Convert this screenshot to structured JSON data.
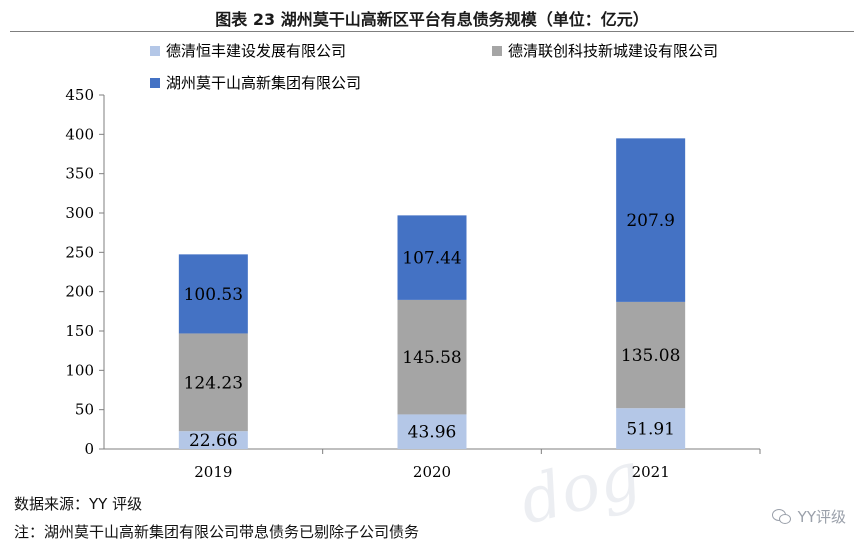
{
  "title": "图表 23 湖州莫干山高新区平台有息债务规模（单位：亿元）",
  "source": "数据来源：YY 评级",
  "note": "注：湖州莫干山高新集团有限公司带息债务已剔除子公司债务",
  "watermark_text": "dog",
  "badge_text": "YY评级",
  "chart_data": {
    "type": "bar",
    "stacked": true,
    "title": "图表 23 湖州莫干山高新区平台有息债务规模（单位：亿元）",
    "xlabel": "",
    "ylabel": "",
    "categories": [
      "2019",
      "2020",
      "2021"
    ],
    "series": [
      {
        "name": "德清恒丰建设发展有限公司",
        "color": "#b4c7e7",
        "values": [
          22.66,
          43.96,
          51.91
        ],
        "labels": [
          "22.66",
          "43.96",
          "51.91"
        ]
      },
      {
        "name": "德清联创科技新城建设有限公司",
        "color": "#a5a5a5",
        "values": [
          124.23,
          145.58,
          135.08
        ],
        "labels": [
          "124.23",
          "145.58",
          "135.08"
        ]
      },
      {
        "name": "湖州莫干山高新集团有限公司",
        "color": "#4472c4",
        "values": [
          100.53,
          107.44,
          207.9
        ],
        "labels": [
          "100.53",
          "107.44",
          "207.9"
        ]
      }
    ],
    "ylim": [
      0,
      450
    ],
    "yticks": [
      0,
      50,
      100,
      150,
      200,
      250,
      300,
      350,
      400,
      450
    ],
    "ytick_labels": [
      "0",
      "50",
      "100",
      "150",
      "200",
      "250",
      "300",
      "350",
      "400",
      "450"
    ],
    "grid": false,
    "legend_position": "top-left"
  }
}
